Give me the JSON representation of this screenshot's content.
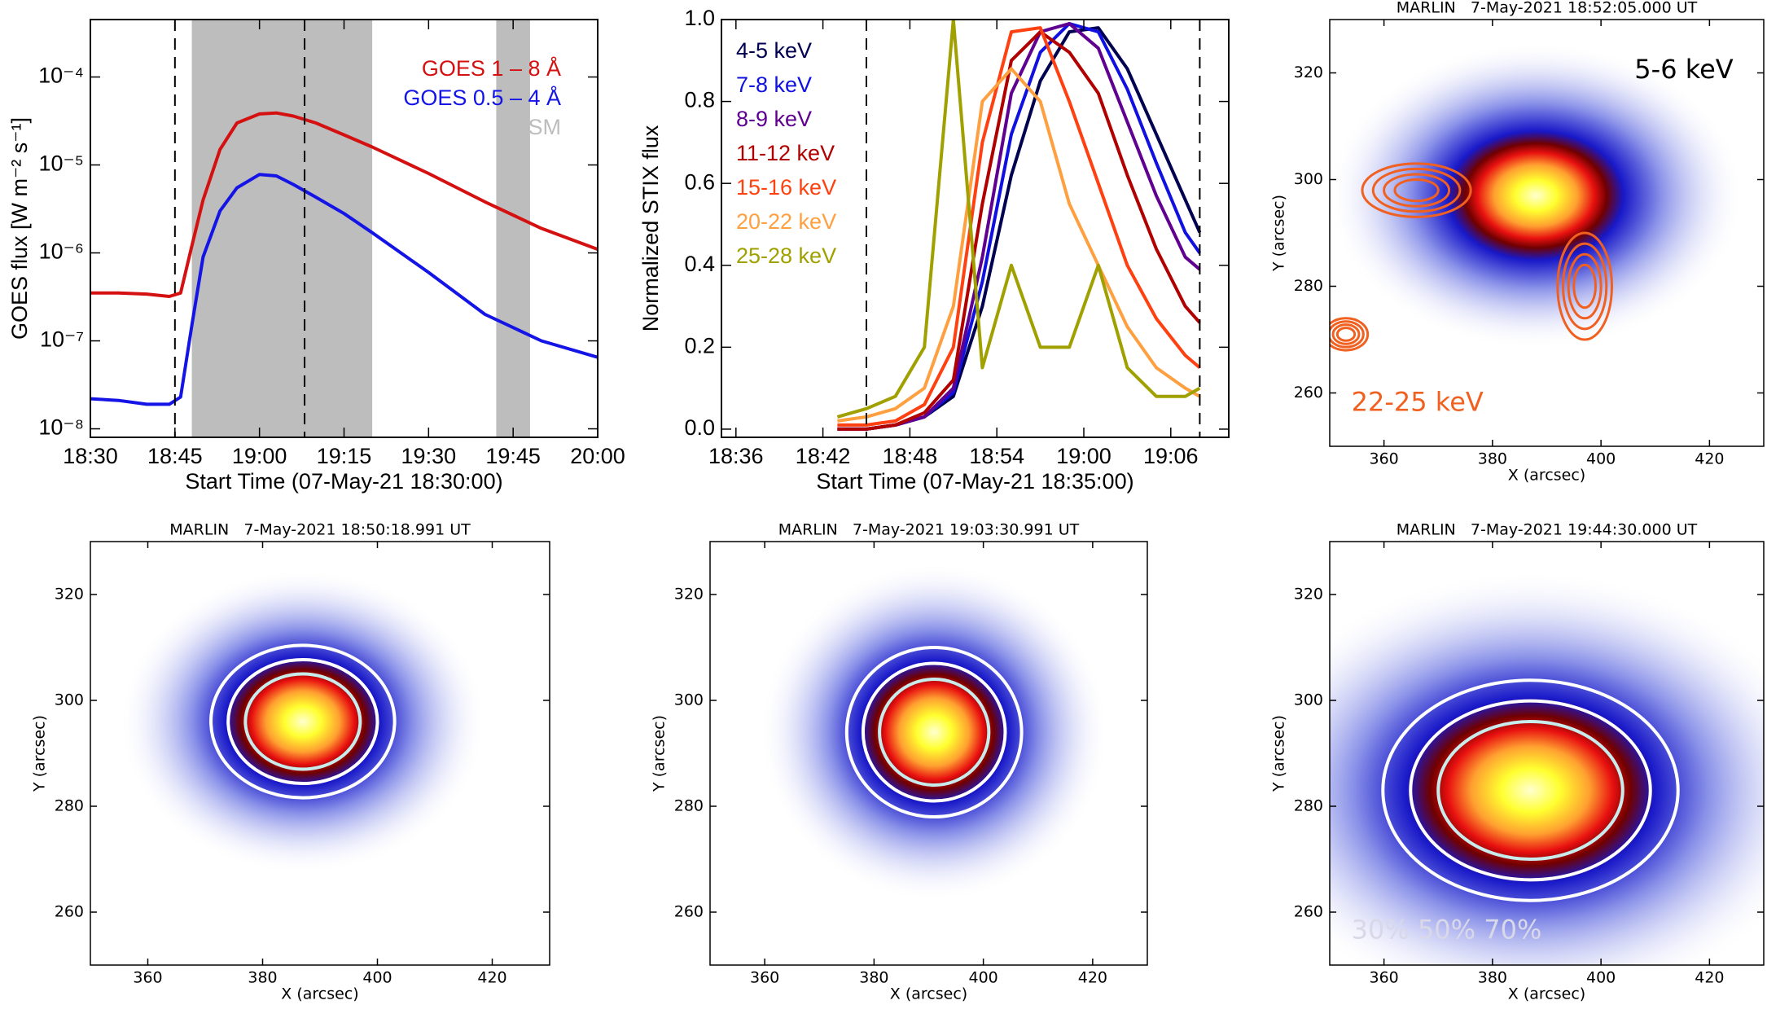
{
  "chart_data": [
    {
      "type": "line",
      "yscale": "log",
      "grid": false,
      "legend": "upper right",
      "xlabel": "Start Time (07-May-21 18:30:00)",
      "ylabel": "GOES flux [W m⁻² s⁻¹]",
      "xlim": [
        "18:30",
        "20:00"
      ],
      "xticks": [
        "18:30",
        "18:45",
        "19:00",
        "19:15",
        "19:30",
        "19:45",
        "20:00"
      ],
      "ylim": [
        8e-09,
        0.00045
      ],
      "yticks": [
        {
          "value": 1e-08,
          "label": "10⁻⁸"
        },
        {
          "value": 1e-07,
          "label": "10⁻⁷"
        },
        {
          "value": 1e-06,
          "label": "10⁻⁶"
        },
        {
          "value": 1e-05,
          "label": "10⁻⁵"
        },
        {
          "value": 0.0001,
          "label": "10⁻⁴"
        }
      ],
      "vlines": [
        "18:45",
        "19:08"
      ],
      "spans": {
        "name": "XSM",
        "color": "#bdbdbd",
        "ranges": [
          [
            "18:48",
            "19:20"
          ],
          [
            "19:42",
            "19:48"
          ]
        ]
      },
      "x": [
        "18:30",
        "18:35",
        "18:40",
        "18:44",
        "18:46",
        "18:48",
        "18:50",
        "18:53",
        "18:56",
        "19:00",
        "19:03",
        "19:06",
        "19:10",
        "19:15",
        "19:20",
        "19:30",
        "19:40",
        "19:50",
        "20:00"
      ],
      "series": [
        {
          "name": "GOES 1 – 8 Å",
          "color": "#d41010",
          "values": [
            3.5e-07,
            3.5e-07,
            3.4e-07,
            3.2e-07,
            3.5e-07,
            1.2e-06,
            4e-06,
            1.5e-05,
            3e-05,
            3.8e-05,
            3.9e-05,
            3.6e-05,
            3e-05,
            2.2e-05,
            1.6e-05,
            8e-06,
            3.8e-06,
            1.9e-06,
            1.1e-06
          ]
        },
        {
          "name": "GOES 0.5 – 4 Å",
          "color": "#1414e6",
          "values": [
            2.2e-08,
            2.1e-08,
            1.9e-08,
            1.9e-08,
            2.3e-08,
            1.5e-07,
            9e-07,
            3e-06,
            5.5e-06,
            7.8e-06,
            7.5e-06,
            6e-06,
            4.3e-06,
            2.8e-06,
            1.7e-06,
            6e-07,
            2e-07,
            1e-07,
            6.5e-08
          ]
        }
      ]
    },
    {
      "type": "line",
      "grid": false,
      "legend": "upper left",
      "xlabel": "Start Time (07-May-21 18:35:00)",
      "ylabel": "Normalized STIX flux",
      "xlim": [
        "18:35",
        "19:10"
      ],
      "xticks": [
        "18:36",
        "18:42",
        "18:48",
        "18:54",
        "19:00",
        "19:06"
      ],
      "ylim": [
        -0.02,
        1.0
      ],
      "yticks": [
        {
          "value": 0,
          "label": "0.0"
        },
        0.2,
        0.4,
        0.6,
        0.8,
        {
          "value": 1,
          "label": "1.0"
        }
      ],
      "vlines": [
        "18:45",
        "19:08"
      ],
      "x": [
        "18:43",
        "18:45",
        "18:47",
        "18:49",
        "18:51",
        "18:53",
        "18:55",
        "18:57",
        "18:59",
        "19:01",
        "19:03",
        "19:05",
        "19:07",
        "19:08"
      ],
      "series": [
        {
          "name": "4-5 keV",
          "color": "#000050",
          "values": [
            0,
            0,
            0.01,
            0.03,
            0.08,
            0.3,
            0.62,
            0.85,
            0.97,
            0.98,
            0.88,
            0.72,
            0.56,
            0.48
          ]
        },
        {
          "name": "7-8 keV",
          "color": "#1010e0",
          "values": [
            0,
            0,
            0.01,
            0.03,
            0.09,
            0.36,
            0.72,
            0.92,
            0.99,
            0.97,
            0.83,
            0.65,
            0.48,
            0.43
          ]
        },
        {
          "name": "8-9 keV",
          "color": "#600090",
          "values": [
            0,
            0,
            0.01,
            0.03,
            0.1,
            0.42,
            0.82,
            0.97,
            0.99,
            0.93,
            0.75,
            0.57,
            0.42,
            0.39
          ]
        },
        {
          "name": "11-12 keV",
          "color": "#b00000",
          "values": [
            0,
            0,
            0.01,
            0.04,
            0.12,
            0.55,
            0.9,
            0.97,
            0.92,
            0.82,
            0.62,
            0.44,
            0.3,
            0.26
          ]
        },
        {
          "name": "15-16 keV",
          "color": "#ff4010",
          "values": [
            0.01,
            0.01,
            0.02,
            0.06,
            0.2,
            0.7,
            0.97,
            0.98,
            0.8,
            0.6,
            0.4,
            0.27,
            0.18,
            0.15
          ]
        },
        {
          "name": "20-22 keV",
          "color": "#ffa040",
          "values": [
            0.02,
            0.03,
            0.05,
            0.1,
            0.3,
            0.8,
            0.88,
            0.8,
            0.55,
            0.4,
            0.25,
            0.15,
            0.1,
            0.08
          ]
        },
        {
          "name": "25-28 keV",
          "color": "#a0a000",
          "values": [
            0.03,
            0.05,
            0.08,
            0.2,
            1.0,
            0.15,
            0.4,
            0.2,
            0.2,
            0.4,
            0.15,
            0.08,
            0.08,
            0.1
          ]
        }
      ]
    },
    {
      "type": "image",
      "title": "MARLIN   7-May-2021 18:52:05.000 UT",
      "xlabel": "X (arcsec)",
      "ylabel": "Y (arcsec)",
      "xlim": [
        350,
        430
      ],
      "ylim": [
        250,
        330
      ],
      "xticks": [
        360,
        380,
        400,
        420
      ],
      "yticks": [
        260,
        280,
        300,
        320
      ],
      "colormap": [
        "#ffffd0",
        "#ffff30",
        "#ffa030",
        "#e81010",
        "#700000",
        "#1818c8",
        "#8890e8",
        "#ffffff"
      ],
      "sources": [
        {
          "x": 388,
          "y": 297,
          "rx": 12,
          "ry": 9
        }
      ],
      "contours": {
        "color": "#f06020",
        "sources": [
          {
            "x": 366,
            "y": 298,
            "rx": 10,
            "ry": 5
          },
          {
            "x": 397,
            "y": 280,
            "rx": 5,
            "ry": 10
          },
          {
            "x": 353,
            "y": 271,
            "rx": 4,
            "ry": 3
          }
        ]
      },
      "annotations": [
        {
          "text": "5-6 keV",
          "color": "#000000"
        },
        {
          "text": "22-25 keV",
          "color": "#f06020"
        }
      ]
    },
    {
      "type": "image",
      "title": "MARLIN   7-May-2021 18:50:18.991 UT",
      "xlabel": "X (arcsec)",
      "ylabel": "Y (arcsec)",
      "xlim": [
        350,
        430
      ],
      "ylim": [
        250,
        330
      ],
      "xticks": [
        360,
        380,
        400,
        420
      ],
      "yticks": [
        260,
        280,
        300,
        320
      ],
      "colormap": [
        "#ffffd0",
        "#ffff30",
        "#ffa030",
        "#e81010",
        "#700000",
        "#1818c8",
        "#8890e8",
        "#ffffff"
      ],
      "sources": [
        {
          "x": 387,
          "y": 296,
          "rx": 10,
          "ry": 9
        }
      ],
      "contours": {
        "colors": [
          "#ffffff",
          "#ffffff",
          "#c8ecec"
        ]
      }
    },
    {
      "type": "image",
      "title": "MARLIN   7-May-2021 19:03:30.991 UT",
      "xlabel": "X (arcsec)",
      "ylabel": "Y (arcsec)",
      "xlim": [
        350,
        430
      ],
      "ylim": [
        250,
        330
      ],
      "xticks": [
        360,
        380,
        400,
        420
      ],
      "yticks": [
        260,
        280,
        300,
        320
      ],
      "colormap": [
        "#ffffd0",
        "#ffff30",
        "#ffa030",
        "#e81010",
        "#700000",
        "#1818c8",
        "#8890e8",
        "#ffffff"
      ],
      "sources": [
        {
          "x": 391,
          "y": 294,
          "rx": 10,
          "ry": 10
        }
      ],
      "contours": {
        "colors": [
          "#ffffff",
          "#ffffff",
          "#c8ecec"
        ]
      }
    },
    {
      "type": "image",
      "title": "MARLIN   7-May-2021 19:44:30.000 UT",
      "xlabel": "X (arcsec)",
      "ylabel": "Y (arcsec)",
      "xlim": [
        350,
        430
      ],
      "ylim": [
        250,
        330
      ],
      "xticks": [
        360,
        380,
        400,
        420
      ],
      "yticks": [
        260,
        280,
        300,
        320
      ],
      "colormap": [
        "#ffffd0",
        "#ffff30",
        "#ffa030",
        "#e81010",
        "#700000",
        "#1818c8",
        "#8890e8",
        "#ffffff"
      ],
      "sources": [
        {
          "x": 387,
          "y": 283,
          "rx": 17,
          "ry": 13
        }
      ],
      "contours": {
        "colors": [
          "#ffffff",
          "#ffffff",
          "#c8ecec"
        ]
      },
      "annotations": [
        {
          "text": "30% 50% 70%",
          "color": "#d8d8e8"
        }
      ]
    }
  ]
}
